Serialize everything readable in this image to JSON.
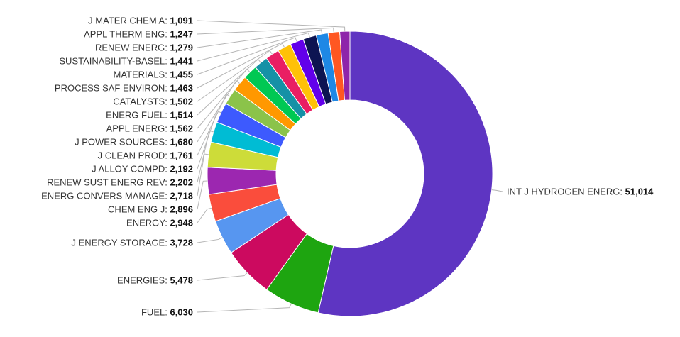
{
  "chart_data": {
    "type": "pie",
    "donut": true,
    "title": "",
    "slices": [
      {
        "label": "INT J HYDROGEN ENERG",
        "value": 51014,
        "display": "51,014",
        "color": "#5e35c2"
      },
      {
        "label": "FUEL",
        "value": 6030,
        "display": "6,030",
        "color": "#1ea510"
      },
      {
        "label": "ENERGIES",
        "value": 5478,
        "display": "5,478",
        "color": "#cc0a5f"
      },
      {
        "label": "J ENERGY STORAGE",
        "value": 3728,
        "display": "3,728",
        "color": "#5796f0"
      },
      {
        "label": "ENERGY",
        "value": 2948,
        "display": "2,948",
        "color": "#fa4d3c"
      },
      {
        "label": "CHEM ENG J",
        "value": 2896,
        "display": "2,896",
        "color": "#9c27b0"
      },
      {
        "label": "ENERG CONVERS MANAGE",
        "value": 2718,
        "display": "2,718",
        "color": "#cddc39"
      },
      {
        "label": "RENEW SUST ENERG REV",
        "value": 2202,
        "display": "2,202",
        "color": "#00bcd4"
      },
      {
        "label": "J ALLOY COMPD",
        "value": 2192,
        "display": "2,192",
        "color": "#3d5afe"
      },
      {
        "label": "J CLEAN PROD",
        "value": 1761,
        "display": "1,761",
        "color": "#8bc34a"
      },
      {
        "label": "J POWER SOURCES",
        "value": 1680,
        "display": "1,680",
        "color": "#ff9800"
      },
      {
        "label": "APPL ENERG",
        "value": 1562,
        "display": "1,562",
        "color": "#00c853"
      },
      {
        "label": "ENERG FUEL",
        "value": 1514,
        "display": "1,514",
        "color": "#1591a6"
      },
      {
        "label": "CATALYSTS",
        "value": 1502,
        "display": "1,502",
        "color": "#e91e63"
      },
      {
        "label": "PROCESS SAF ENVIRON",
        "value": 1463,
        "display": "1,463",
        "color": "#ffc107"
      },
      {
        "label": "MATERIALS",
        "value": 1455,
        "display": "1,455",
        "color": "#6200ea"
      },
      {
        "label": "SUSTAINABILITY-BASEL",
        "value": 1441,
        "display": "1,441",
        "color": "#0d1452"
      },
      {
        "label": "RENEW ENERG",
        "value": 1279,
        "display": "1,279",
        "color": "#1e88e5"
      },
      {
        "label": "APPL THERM ENG",
        "value": 1247,
        "display": "1,247",
        "color": "#ff5722"
      },
      {
        "label": "J MATER CHEM A",
        "value": 1091,
        "display": "1,091",
        "color": "#8e24aa"
      }
    ],
    "legend": "none"
  }
}
